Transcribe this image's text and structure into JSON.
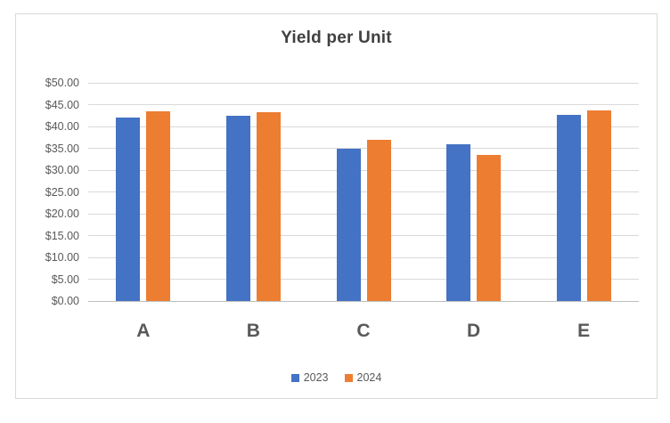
{
  "chart_data": {
    "type": "bar",
    "title": "Yield per Unit",
    "categories": [
      "A",
      "B",
      "C",
      "D",
      "E"
    ],
    "series": [
      {
        "name": "2023",
        "color": "#4472C4",
        "values": [
          42.0,
          42.5,
          35.0,
          36.0,
          42.6
        ]
      },
      {
        "name": "2024",
        "color": "#ED7D31",
        "values": [
          43.5,
          43.25,
          37.0,
          33.5,
          43.7
        ]
      }
    ],
    "y_axis": {
      "min": 0,
      "max": 50,
      "step": 5,
      "tick_labels": [
        "$0.00",
        "$5.00",
        "$10.00",
        "$15.00",
        "$20.00",
        "$25.00",
        "$30.00",
        "$35.00",
        "$40.00",
        "$45.00",
        "$50.00"
      ]
    },
    "grid": true,
    "legend_position": "bottom"
  },
  "colors": {
    "background": "#FFFFFF",
    "frame_border": "#D9D9D9",
    "gridline": "#D9D9D9",
    "axis_line": "#BFBFBF",
    "axis_text": "#595959",
    "title_text": "#404040",
    "series_2023": "#4472C4",
    "series_2024": "#ED7D31"
  }
}
